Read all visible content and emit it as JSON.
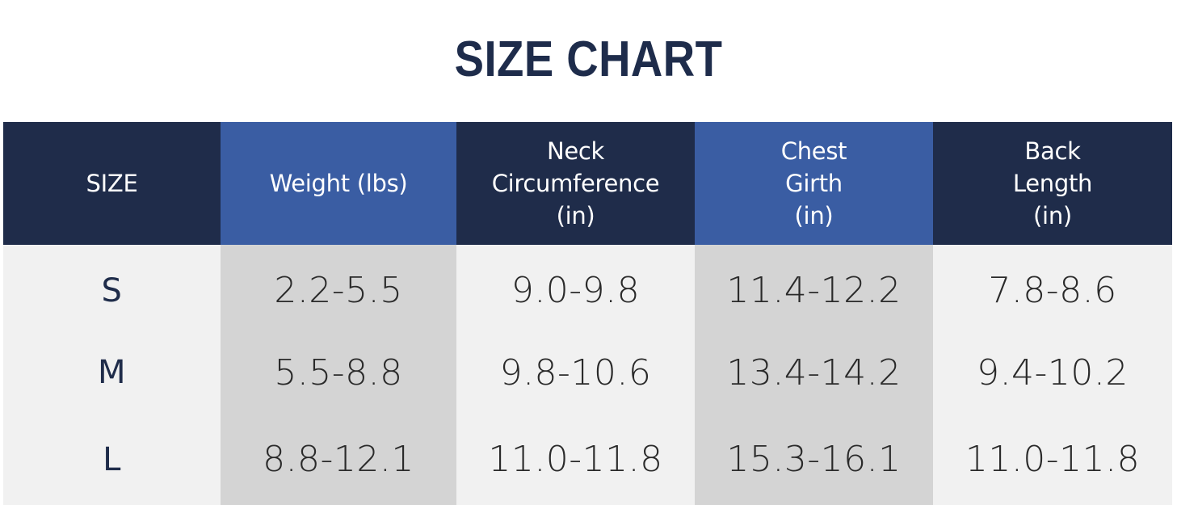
{
  "title": "SIZE CHART",
  "headers": {
    "size": [
      "SIZE"
    ],
    "weight": [
      "Weight (lbs)"
    ],
    "neck": [
      "Neck",
      "Circumference",
      "(in)"
    ],
    "chest": [
      "Chest",
      "Girth",
      "(in)"
    ],
    "back": [
      "Back",
      "Length",
      "(in)"
    ]
  },
  "rows": [
    {
      "size": "S",
      "weight": "2.2-5.5",
      "neck": "9.0-9.8",
      "chest": "11.4-12.2",
      "back": "7.8-8.6"
    },
    {
      "size": "M",
      "weight": "5.5-8.8",
      "neck": "9.8-10.6",
      "chest": "13.4-14.2",
      "back": "9.4-10.2"
    },
    {
      "size": "L",
      "weight": "8.8-12.1",
      "neck": "11.0-11.8",
      "chest": "15.3-16.1",
      "back": "11.0-11.8"
    }
  ],
  "colors": {
    "title": "#1e2c4b",
    "header_dark": "#1f2c4a",
    "header_blue": "#3a5da3",
    "body_light": "#f1f1f1",
    "body_gray": "#d4d4d4"
  }
}
